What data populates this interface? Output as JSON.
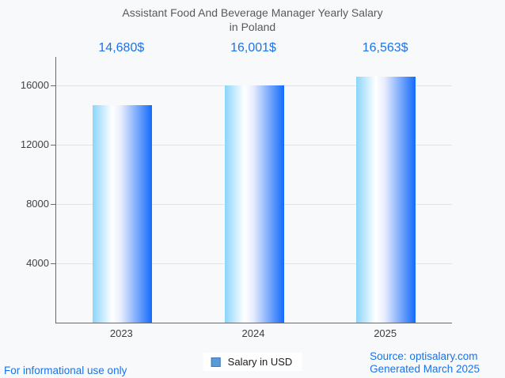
{
  "header": {
    "title_line1": "Assistant Food And Beverage Manager Yearly Salary",
    "title_line2": "in Poland"
  },
  "chart_data": {
    "type": "bar",
    "title": "Assistant Food And Beverage Manager Yearly Salary in Poland",
    "categories": [
      "2023",
      "2024",
      "2025"
    ],
    "values": [
      14680,
      16001,
      16563
    ],
    "value_labels": [
      "14,680$",
      "16,001$",
      "16,563$"
    ],
    "series_name": "Salary in USD",
    "xlabel": "",
    "ylabel": "",
    "yticks": [
      4000,
      8000,
      12000,
      16000
    ],
    "ylim": [
      0,
      17920
    ],
    "grid": true,
    "legend_position": "bottom",
    "bar_gradient": [
      "#8bd5fb",
      "#ffffff",
      "#136afc"
    ],
    "annotation_color": "#1a73e8"
  },
  "legend": {
    "label": "Salary in USD",
    "swatch_color": "#5b9bd5"
  },
  "footer": {
    "left_note": "For informational use only",
    "source": "Source: optisalary.com",
    "generated": "Generated March 2025"
  },
  "colors": {
    "background": "#f8f9fa",
    "title_text": "#58595b",
    "axis_line": "#696a6d",
    "gridline": "#e3e4e6",
    "tick_text": "#414244",
    "link_blue": "#1a73e8"
  }
}
